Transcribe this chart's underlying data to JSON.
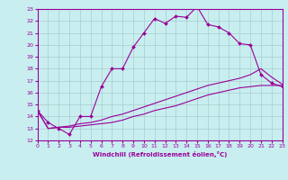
{
  "xlabel": "Windchill (Refroidissement éolien,°C)",
  "bg_color": "#c8eef0",
  "line_color": "#990099",
  "grid_color": "#aacccc",
  "xmin": 0,
  "xmax": 23,
  "ymin": 12,
  "ymax": 23,
  "curve1_x": [
    0,
    1,
    2,
    3,
    4,
    5,
    6,
    7,
    8,
    9,
    10,
    11,
    12,
    13,
    14,
    15,
    16,
    17,
    18,
    19,
    20,
    21,
    22,
    23
  ],
  "curve1_y": [
    14.5,
    13.5,
    13.0,
    12.5,
    14.0,
    14.0,
    16.5,
    18.0,
    18.0,
    19.8,
    21.0,
    22.2,
    21.8,
    22.4,
    22.3,
    23.2,
    21.7,
    21.5,
    21.0,
    20.1,
    20.0,
    17.5,
    16.8,
    16.5
  ],
  "curve2_x": [
    0,
    1,
    2,
    3,
    4,
    5,
    6,
    7,
    8,
    9,
    10,
    11,
    12,
    13,
    14,
    15,
    16,
    17,
    18,
    19,
    20,
    21,
    22,
    23
  ],
  "curve2_y": [
    14.5,
    13.0,
    13.1,
    13.1,
    13.2,
    13.3,
    13.4,
    13.5,
    13.7,
    14.0,
    14.2,
    14.5,
    14.7,
    14.9,
    15.2,
    15.5,
    15.8,
    16.0,
    16.2,
    16.4,
    16.5,
    16.6,
    16.6,
    16.6
  ],
  "curve3_x": [
    0,
    1,
    2,
    3,
    4,
    5,
    6,
    7,
    8,
    9,
    10,
    11,
    12,
    13,
    14,
    15,
    16,
    17,
    18,
    19,
    20,
    21,
    22,
    23
  ],
  "curve3_y": [
    14.5,
    13.0,
    13.1,
    13.2,
    13.4,
    13.5,
    13.7,
    14.0,
    14.2,
    14.5,
    14.8,
    15.1,
    15.4,
    15.7,
    16.0,
    16.3,
    16.6,
    16.8,
    17.0,
    17.2,
    17.5,
    18.0,
    17.3,
    16.7
  ],
  "tick_fontsize": 4.5,
  "xlabel_fontsize": 5.0
}
